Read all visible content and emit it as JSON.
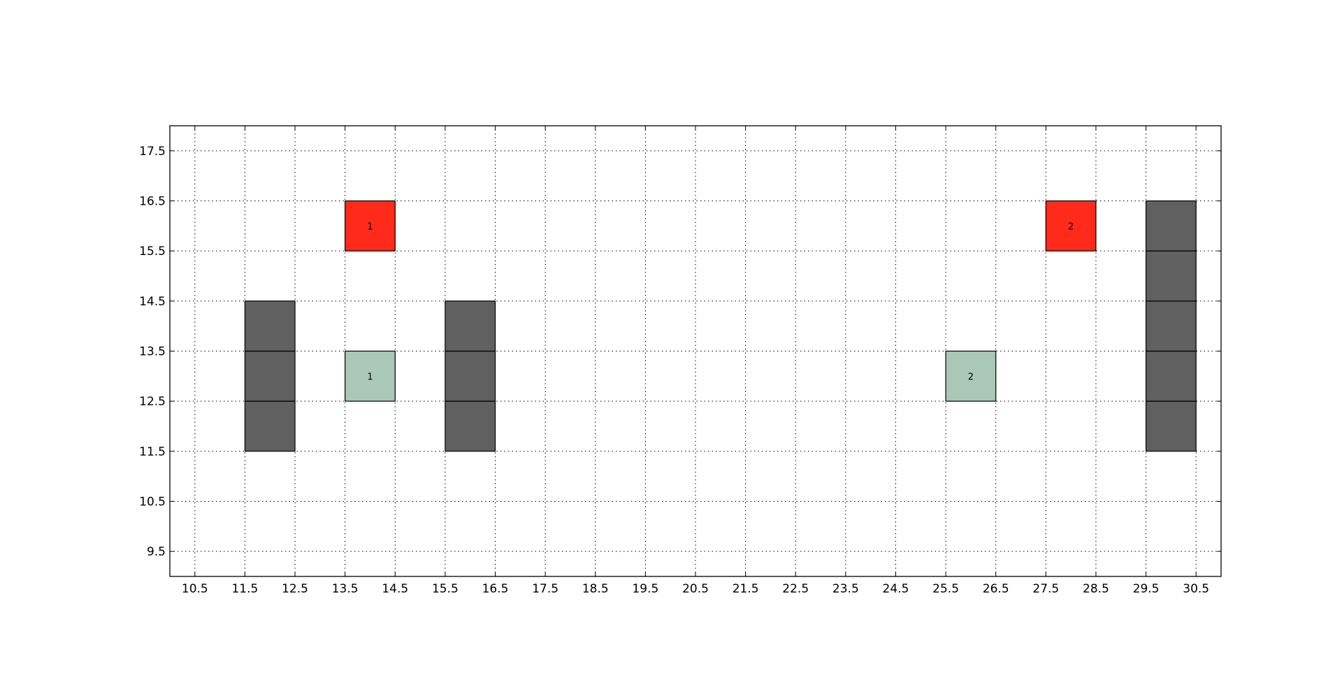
{
  "chart_data": {
    "type": "heatmap",
    "title": "",
    "xlabel": "",
    "ylabel": "",
    "xlim": [
      10,
      31
    ],
    "ylim": [
      9,
      18
    ],
    "xticks": [
      10.5,
      11.5,
      12.5,
      13.5,
      14.5,
      15.5,
      16.5,
      17.5,
      18.5,
      19.5,
      20.5,
      21.5,
      22.5,
      23.5,
      24.5,
      25.5,
      26.5,
      27.5,
      28.5,
      29.5,
      30.5
    ],
    "xtick_labels": [
      "10.5",
      "11.5",
      "12.5",
      "13.5",
      "14.5",
      "15.5",
      "16.5",
      "17.5",
      "18.5",
      "19.5",
      "20.5",
      "21.5",
      "22.5",
      "23.5",
      "24.5",
      "25.5",
      "26.5",
      "27.5",
      "28.5",
      "29.5",
      "30.5"
    ],
    "yticks": [
      9.5,
      10.5,
      11.5,
      12.5,
      13.5,
      14.5,
      15.5,
      16.5,
      17.5
    ],
    "ytick_labels": [
      "9.5",
      "10.5",
      "11.5",
      "12.5",
      "13.5",
      "14.5",
      "15.5",
      "16.5",
      "17.5"
    ],
    "grid": true,
    "grid_style": "dotted",
    "colors": {
      "wall": "#606060",
      "goal": "#ff2a1a",
      "agent": "#aac8b8",
      "edge": "#000000"
    },
    "cells": [
      {
        "x": 12,
        "y": 12,
        "kind": "wall",
        "label": ""
      },
      {
        "x": 12,
        "y": 13,
        "kind": "wall",
        "label": ""
      },
      {
        "x": 12,
        "y": 14,
        "kind": "wall",
        "label": ""
      },
      {
        "x": 16,
        "y": 12,
        "kind": "wall",
        "label": ""
      },
      {
        "x": 16,
        "y": 13,
        "kind": "wall",
        "label": ""
      },
      {
        "x": 16,
        "y": 14,
        "kind": "wall",
        "label": ""
      },
      {
        "x": 30,
        "y": 12,
        "kind": "wall",
        "label": ""
      },
      {
        "x": 30,
        "y": 13,
        "kind": "wall",
        "label": ""
      },
      {
        "x": 30,
        "y": 14,
        "kind": "wall",
        "label": ""
      },
      {
        "x": 30,
        "y": 15,
        "kind": "wall",
        "label": ""
      },
      {
        "x": 30,
        "y": 16,
        "kind": "wall",
        "label": ""
      },
      {
        "x": 14,
        "y": 16,
        "kind": "goal",
        "label": "1"
      },
      {
        "x": 28,
        "y": 16,
        "kind": "goal",
        "label": "2"
      },
      {
        "x": 14,
        "y": 13,
        "kind": "agent",
        "label": "1"
      },
      {
        "x": 26,
        "y": 13,
        "kind": "agent",
        "label": "2"
      }
    ]
  }
}
